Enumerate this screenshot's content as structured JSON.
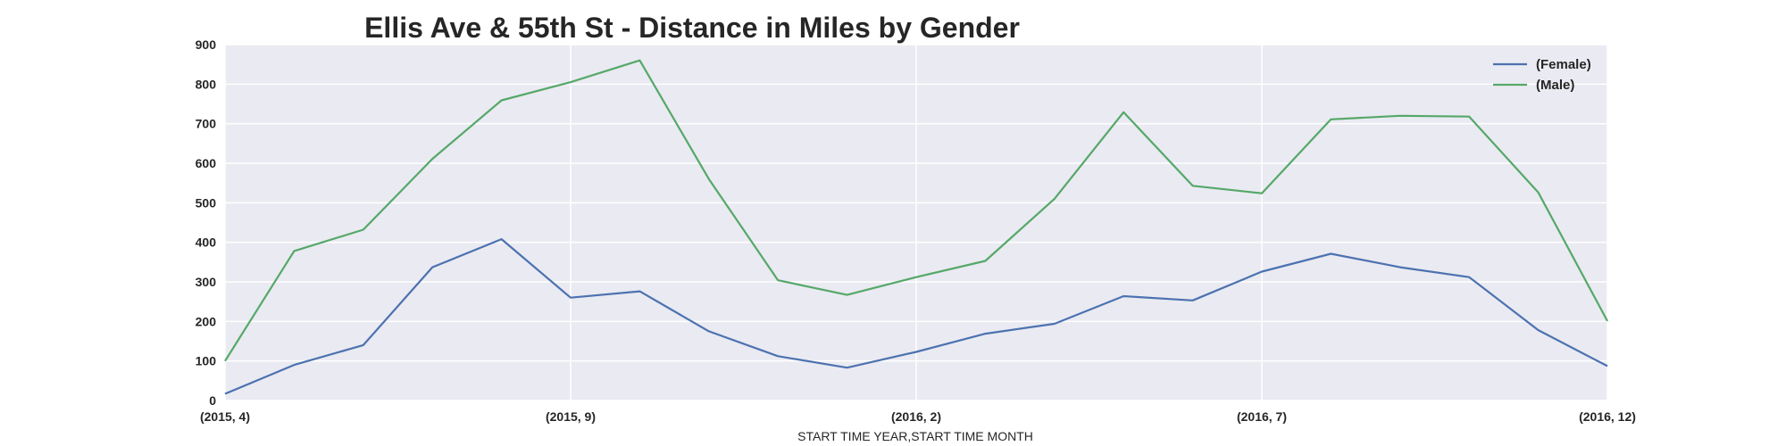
{
  "chart_data": {
    "type": "line",
    "title": "Ellis Ave & 55th St - Distance in Miles by Gender",
    "xlabel": "START TIME YEAR,START TIME MONTH",
    "ylabel": "",
    "ylim": [
      0,
      900
    ],
    "yticks": [
      "0",
      "100",
      "200",
      "300",
      "400",
      "500",
      "600",
      "700",
      "800",
      "900"
    ],
    "x": [
      "(2015, 4)",
      "(2015, 5)",
      "(2015, 6)",
      "(2015, 7)",
      "(2015, 8)",
      "(2015, 9)",
      "(2015, 10)",
      "(2015, 11)",
      "(2015, 12)",
      "(2016, 1)",
      "(2016, 2)",
      "(2016, 3)",
      "(2016, 4)",
      "(2016, 5)",
      "(2016, 6)",
      "(2016, 7)",
      "(2016, 8)",
      "(2016, 9)",
      "(2016, 10)",
      "(2016, 11)",
      "(2016, 12)"
    ],
    "xticks": [
      "(2015, 4)",
      "(2015, 9)",
      "(2016, 2)",
      "(2016, 7)",
      "(2016, 12)"
    ],
    "grid": true,
    "legend_position": "top-right",
    "series": [
      {
        "name": "(Female)",
        "color": "#4c72b0",
        "values": [
          17,
          90,
          140,
          337,
          408,
          260,
          276,
          175,
          112,
          83,
          123,
          169,
          194,
          264,
          253,
          326,
          371,
          337,
          312,
          178,
          87
        ]
      },
      {
        "name": "(Male)",
        "color": "#55a868",
        "values": [
          100,
          378,
          432,
          611,
          759,
          805,
          860,
          560,
          304,
          267,
          312,
          353,
          510,
          729,
          543,
          524,
          711,
          720,
          718,
          526,
          201
        ]
      }
    ]
  }
}
